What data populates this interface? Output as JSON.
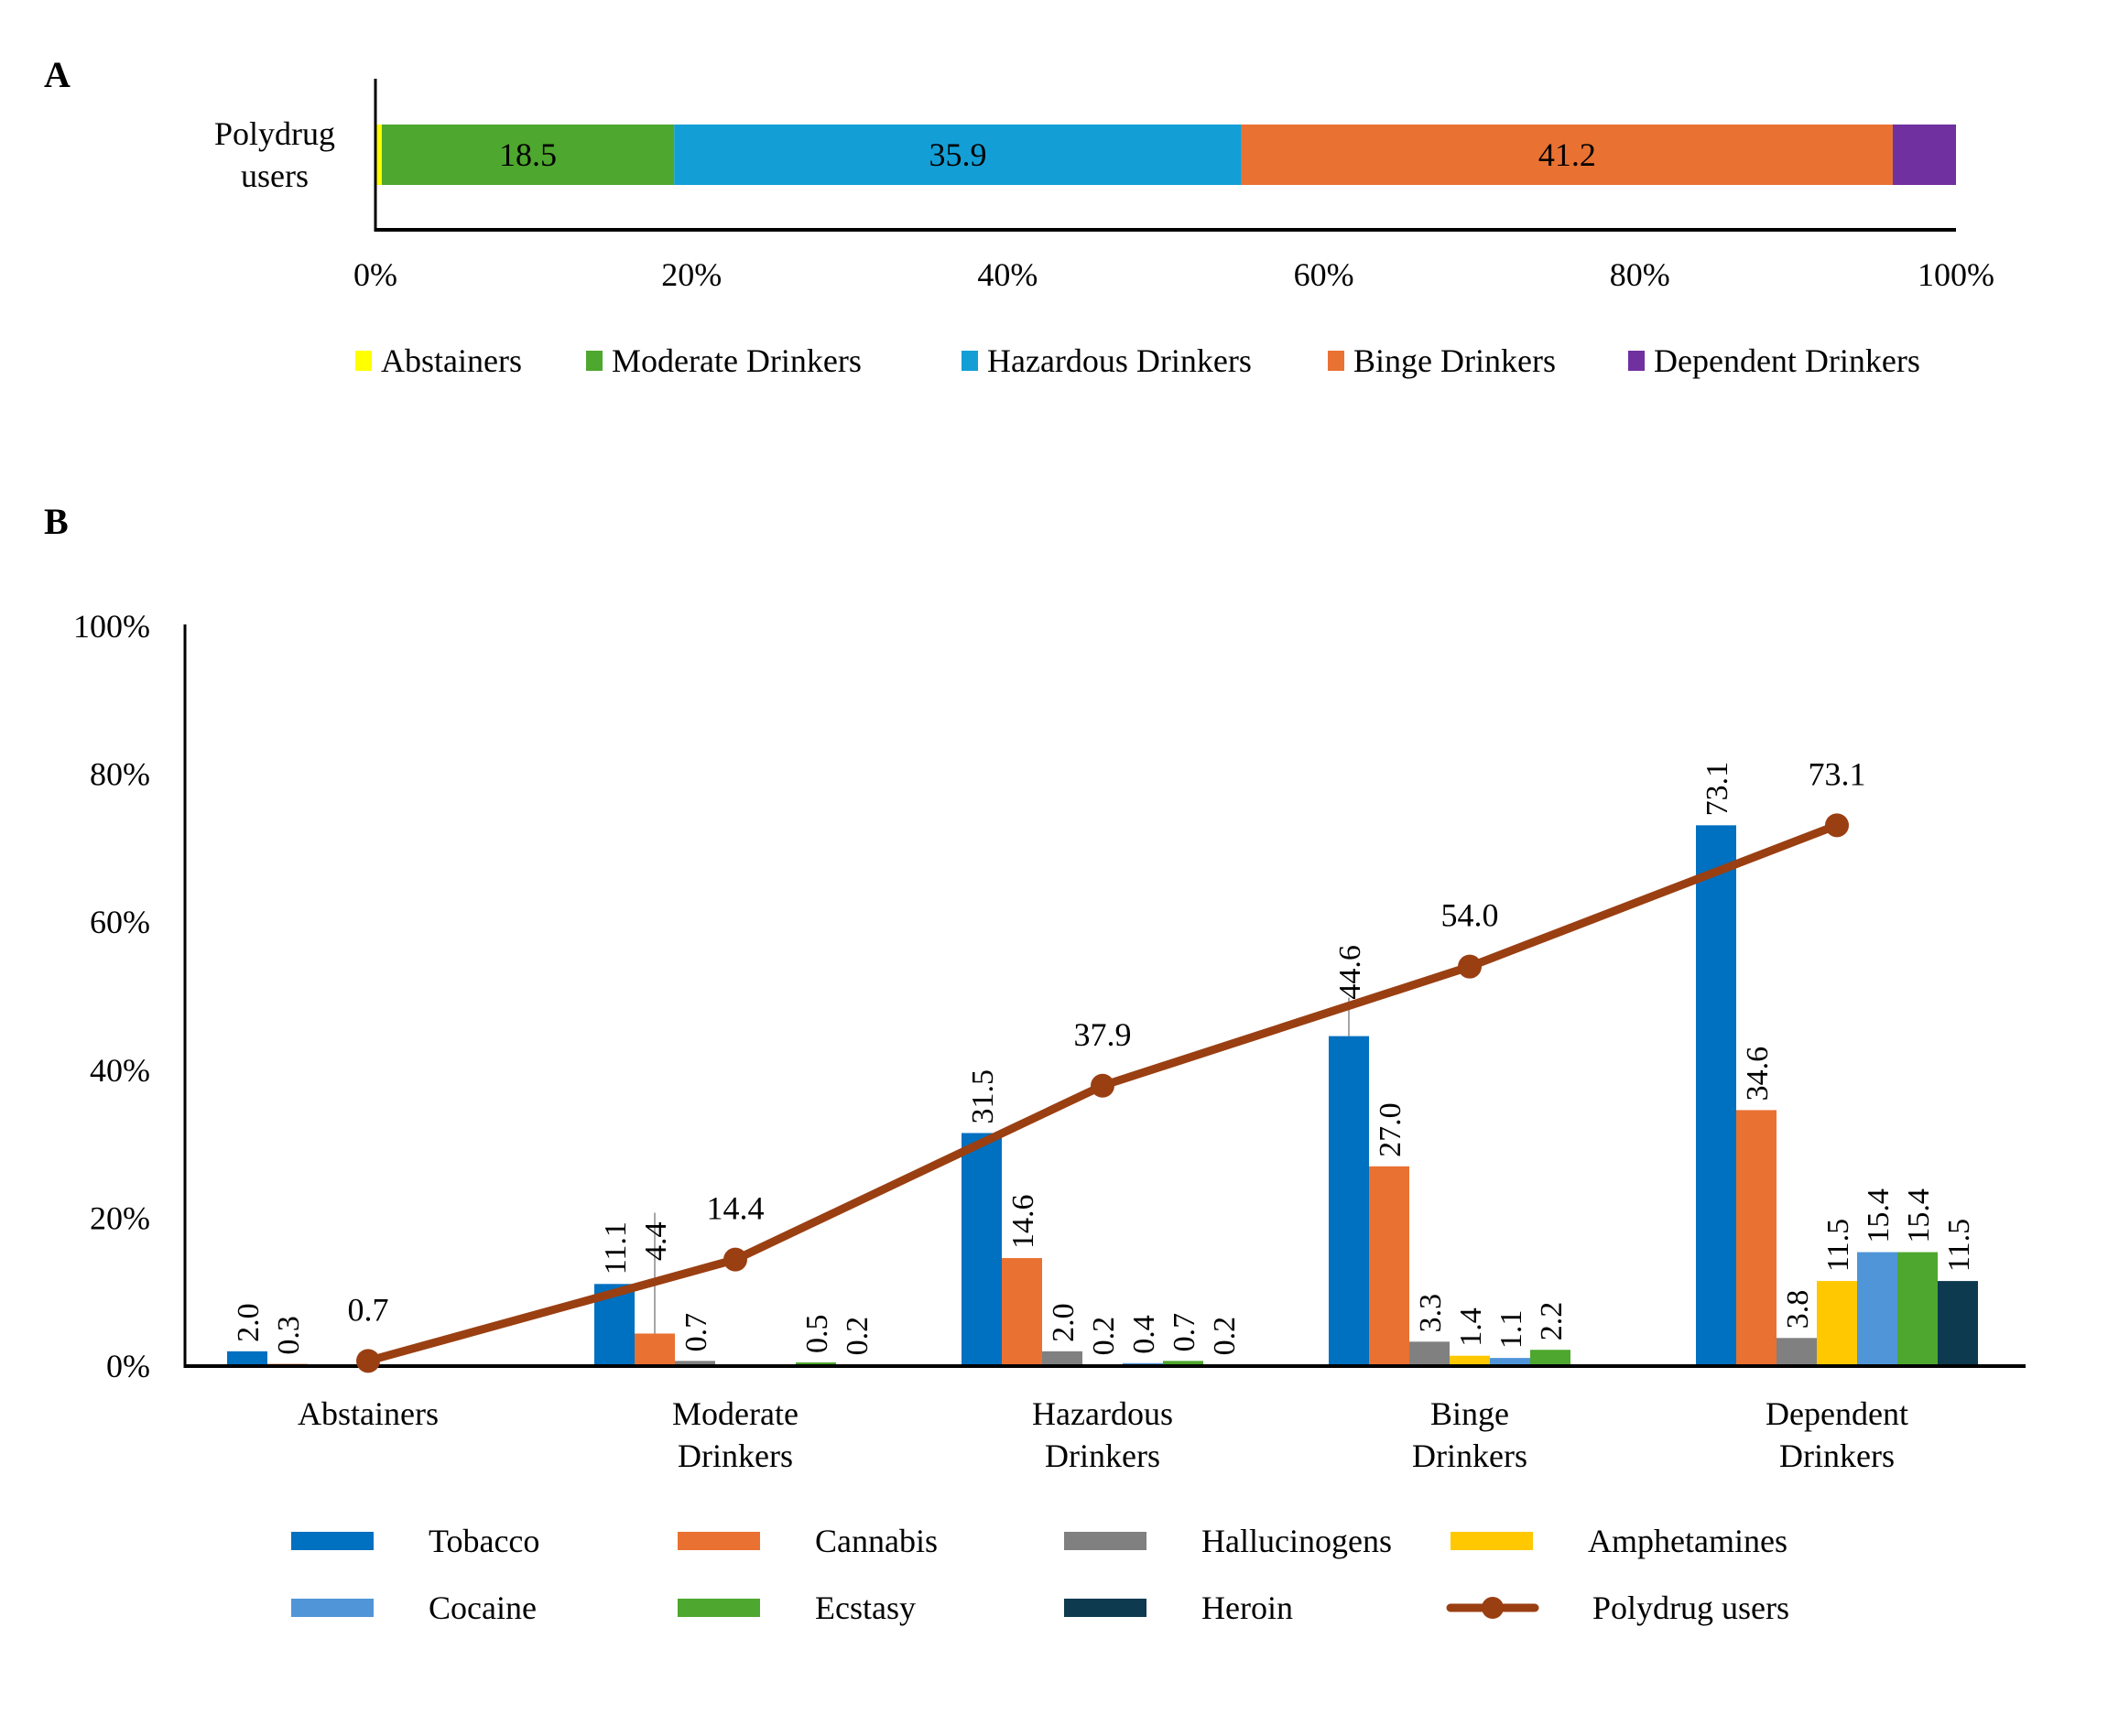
{
  "panel_labels": {
    "a": "A",
    "b": "B"
  },
  "chart_data": [
    {
      "panel": "A",
      "type": "bar",
      "orientation": "horizontal",
      "stacked": true,
      "percent_stacked": true,
      "categories": [
        "Polydrug users"
      ],
      "category_label_lines": [
        "Polydrug",
        "users"
      ],
      "series": [
        {
          "name": "Abstainers",
          "color": "#FFFF00",
          "values": [
            0.4
          ],
          "label": ""
        },
        {
          "name": "Moderate Drinkers",
          "color": "#4EA72E",
          "values": [
            18.5
          ],
          "label": "18.5"
        },
        {
          "name": "Hazardous Drinkers",
          "color": "#139FD6",
          "values": [
            35.9
          ],
          "label": "35.9"
        },
        {
          "name": "Binge Drinkers",
          "color": "#E97132",
          "values": [
            41.2
          ],
          "label": "41.2"
        },
        {
          "name": "Dependent Drinkers",
          "color": "#7030A0",
          "values": [
            4.0
          ],
          "label": ""
        }
      ],
      "xlim": [
        0,
        100
      ],
      "xticks": [
        "0%",
        "20%",
        "40%",
        "60%",
        "80%",
        "100%"
      ],
      "legend_position": "bottom",
      "grid": false
    },
    {
      "panel": "B",
      "type": "bar",
      "categories": [
        "Abstainers",
        "Moderate Drinkers",
        "Hazardous Drinkers",
        "Binge Drinkers",
        "Dependent Drinkers"
      ],
      "category_label_lines": [
        [
          "Abstainers"
        ],
        [
          "Moderate",
          "Drinkers"
        ],
        [
          "Hazardous",
          "Drinkers"
        ],
        [
          "Binge",
          "Drinkers"
        ],
        [
          "Dependent",
          "Drinkers"
        ]
      ],
      "series": [
        {
          "name": "Tobacco",
          "color": "#0070C0",
          "values": [
            2.0,
            11.1,
            31.5,
            44.6,
            73.1
          ],
          "labels": [
            "2.0",
            "11.1",
            "31.5",
            "44.6",
            "73.1"
          ]
        },
        {
          "name": "Cannabis",
          "color": "#E97132",
          "values": [
            0.3,
            4.4,
            14.6,
            27.0,
            34.6
          ],
          "labels": [
            "0.3",
            "4.4",
            "14.6",
            "27.0",
            "34.6"
          ]
        },
        {
          "name": "Hallucinogens",
          "color": "#808080",
          "values": [
            0,
            0.7,
            2.0,
            3.3,
            3.8
          ],
          "labels": [
            "",
            "0.7",
            "2.0",
            "3.3",
            "3.8"
          ]
        },
        {
          "name": "Amphetamines",
          "color": "#FFC800",
          "values": [
            0,
            0,
            0.2,
            1.4,
            11.5
          ],
          "labels": [
            "",
            "",
            "0.2",
            "1.4",
            "11.5"
          ]
        },
        {
          "name": "Cocaine",
          "color": "#4F95D8",
          "values": [
            0,
            0,
            0.4,
            1.1,
            15.4
          ],
          "labels": [
            "",
            "",
            "0.4",
            "1.1",
            "15.4"
          ]
        },
        {
          "name": "Ecstasy",
          "color": "#4EA72E",
          "values": [
            0,
            0.5,
            0.7,
            2.2,
            15.4
          ],
          "labels": [
            "",
            "0.5",
            "0.7",
            "2.2",
            "15.4"
          ]
        },
        {
          "name": "Heroin",
          "color": "#0E3A4F",
          "values": [
            0,
            0.2,
            0.2,
            0,
            11.5
          ],
          "labels": [
            "",
            "0.2",
            "0.2",
            "",
            "11.5"
          ]
        }
      ],
      "line_series": {
        "name": "Polydrug users",
        "type": "line",
        "color": "#9A3F12",
        "values": [
          0.7,
          14.4,
          37.9,
          54.0,
          73.1
        ],
        "labels": [
          "0.7",
          "14.4",
          "37.9",
          "54.0",
          "73.1"
        ]
      },
      "ylim": [
        0,
        100
      ],
      "yticks": [
        "0%",
        "20%",
        "40%",
        "60%",
        "80%",
        "100%"
      ],
      "legend_position": "bottom",
      "legend_order": [
        "Tobacco",
        "Cannabis",
        "Hallucinogens",
        "Amphetamines",
        "Cocaine",
        "Ecstasy",
        "Heroin",
        "Polydrug users"
      ],
      "grid": false
    }
  ]
}
